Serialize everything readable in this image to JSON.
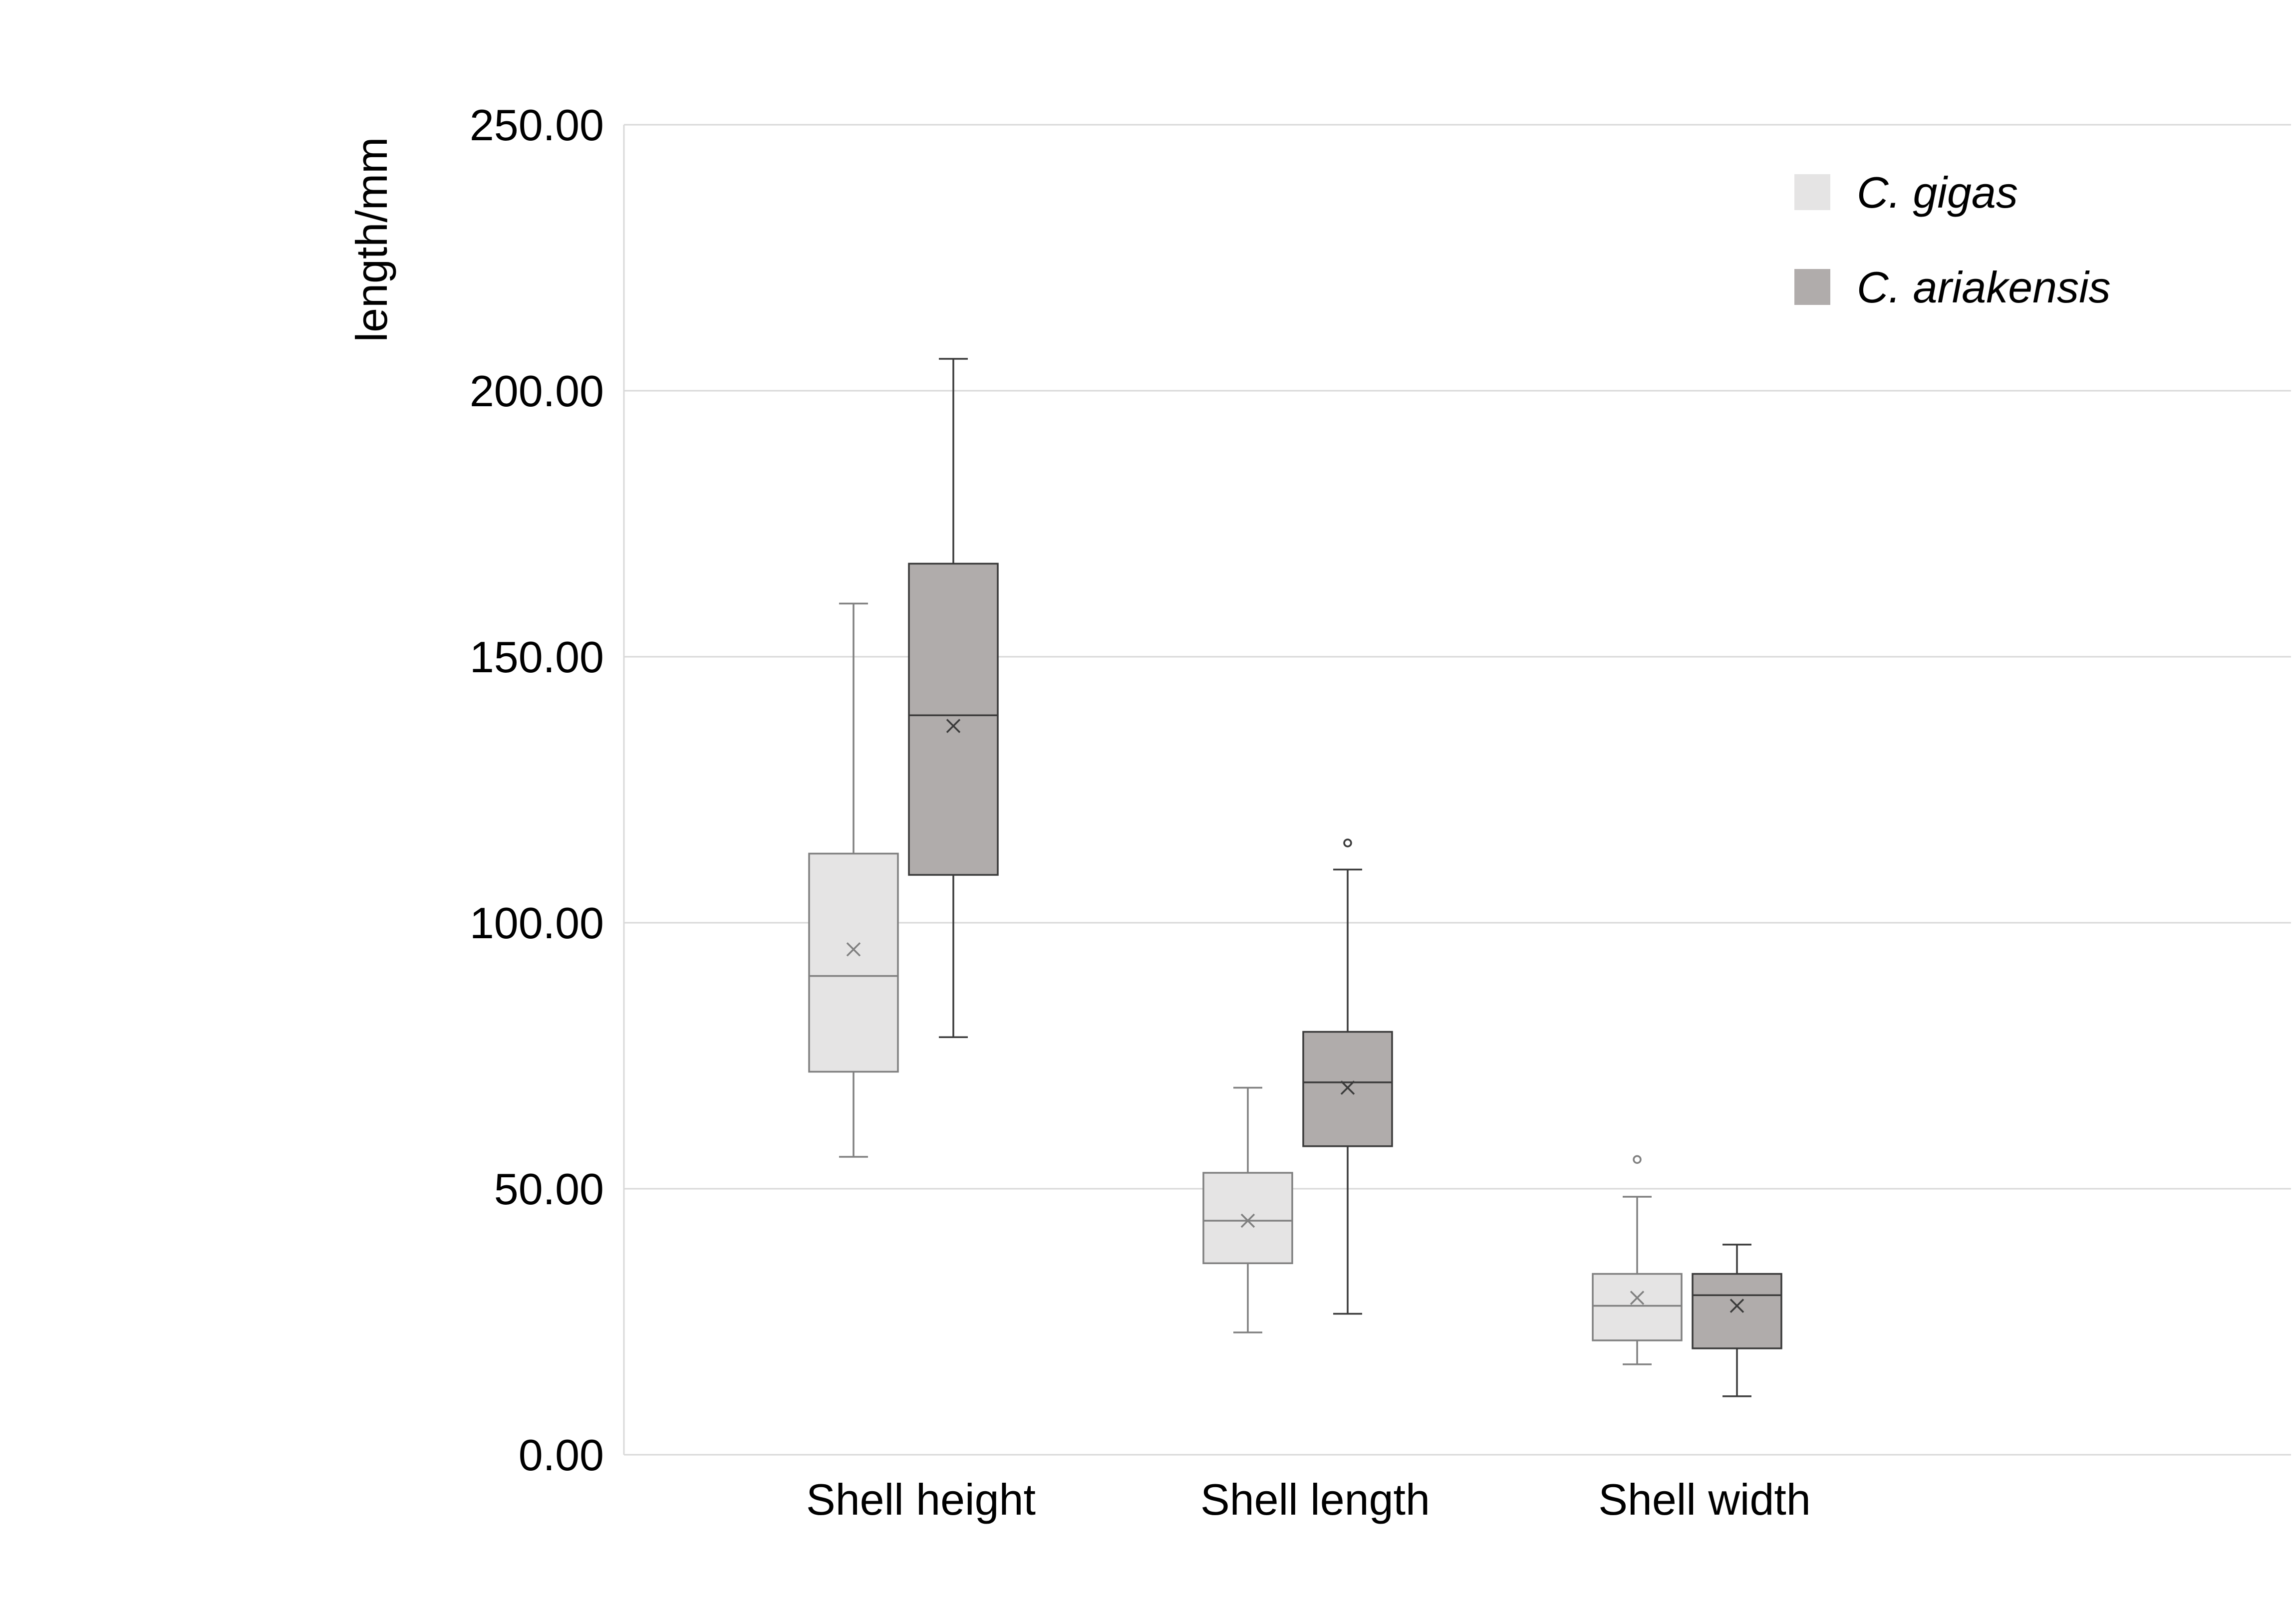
{
  "chart_data": {
    "type": "box",
    "title": "",
    "ylabel": "length/mm",
    "xlabel": "",
    "ylim": [
      0,
      250
    ],
    "yticks": [
      0,
      50,
      100,
      150,
      200,
      250
    ],
    "ytick_labels": [
      "0.00",
      "50.00",
      "100.00",
      "150.00",
      "200.00",
      "250.00"
    ],
    "grid": true,
    "legend_position": "top-right",
    "categories": [
      "Shell height",
      "Shell length",
      "Shell width"
    ],
    "series": [
      {
        "name": "C. gigas",
        "fill": "#e5e4e4",
        "stroke": "#808080",
        "boxes": [
          {
            "min": 56,
            "q1": 72,
            "median": 90,
            "q3": 113,
            "max": 160,
            "mean": 95,
            "outliers": []
          },
          {
            "min": 23,
            "q1": 36,
            "median": 44,
            "q3": 53,
            "max": 69,
            "mean": 44,
            "outliers": []
          },
          {
            "min": 17,
            "q1": 21.5,
            "median": 28,
            "q3": 34,
            "max": 48.5,
            "mean": 29.5,
            "outliers": [
              55.5
            ]
          }
        ]
      },
      {
        "name": "C. ariakensis",
        "fill": "#b0acab",
        "stroke": "#3a3a3a",
        "boxes": [
          {
            "min": 78.5,
            "q1": 109,
            "median": 139,
            "q3": 167.5,
            "max": 206,
            "mean": 137,
            "outliers": []
          },
          {
            "min": 26.5,
            "q1": 58,
            "median": 70,
            "q3": 79.5,
            "max": 110,
            "mean": 69,
            "outliers": [
              115
            ]
          },
          {
            "min": 11,
            "q1": 20,
            "median": 30,
            "q3": 34,
            "max": 39.5,
            "mean": 28,
            "outliers": []
          }
        ]
      }
    ]
  }
}
